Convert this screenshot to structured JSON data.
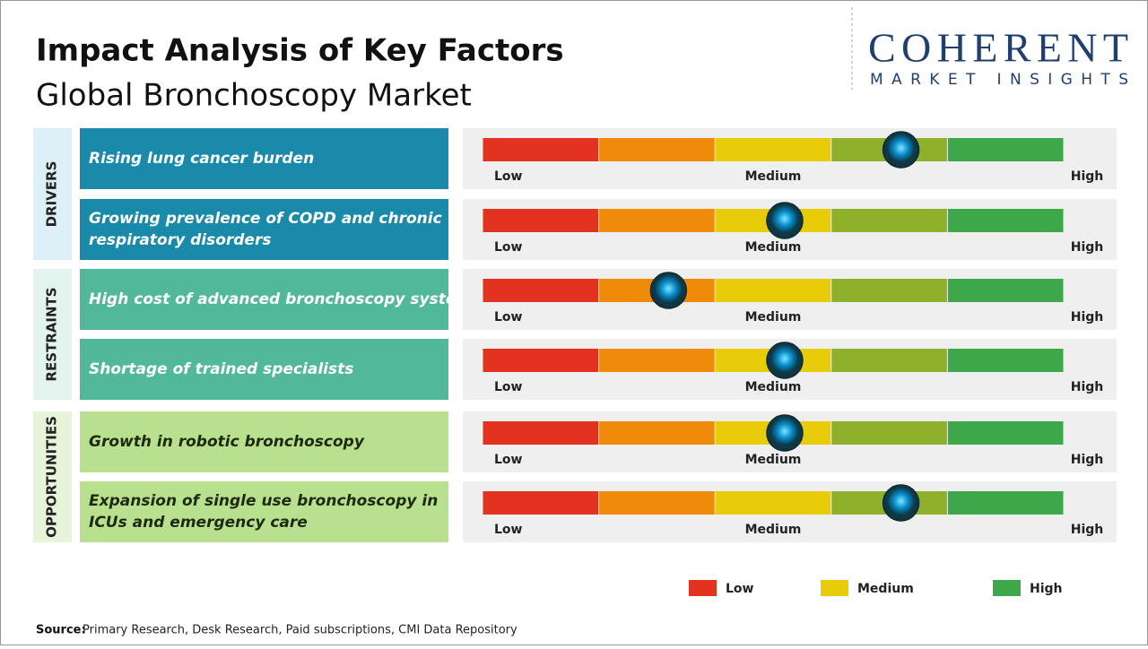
{
  "header": {
    "title": "Impact Analysis of Key Factors",
    "subtitle": "Global Bronchoscopy Market"
  },
  "logo": {
    "name": "COHERENT",
    "tagline": "MARKET INSIGHTS"
  },
  "scale_labels": [
    "Low",
    "Medium",
    "High"
  ],
  "segment_colors": [
    "#e3321f",
    "#ef8a0a",
    "#e8cc0a",
    "#8fb02a",
    "#3ca84a"
  ],
  "xlim": [
    0,
    5
  ],
  "groups": [
    {
      "name": "DRIVERS",
      "label_bg": "#ddeff7",
      "color": "#1a8aab",
      "text_color": "#ffffff",
      "factors": [
        {
          "label": "Rising lung cancer burden",
          "impact": 3.6
        },
        {
          "label": "Growing prevalence of COPD and chronic respiratory disorders",
          "impact": 2.6
        }
      ]
    },
    {
      "name": "RESTRAINTS",
      "label_bg": "#e3f4ee",
      "color": "#52b89a",
      "text_color": "#ffffff",
      "factors": [
        {
          "label": "High cost of advanced bronchoscopy systems",
          "impact": 1.6
        },
        {
          "label": "Shortage of trained specialists",
          "impact": 2.6
        }
      ]
    },
    {
      "name": "OPPORTUNITIES",
      "label_bg": "#e6f4da",
      "color": "#b8e08e",
      "text_color": "#1e2a10",
      "factors": [
        {
          "label": "Growth in robotic bronchoscopy",
          "impact": 2.6
        },
        {
          "label": "Expansion of single use bronchoscopy in ICUs and emergency care",
          "impact": 3.6
        }
      ]
    }
  ],
  "legend": [
    {
      "name": "Low",
      "color": "#e3321f"
    },
    {
      "name": "Medium",
      "color": "#e8cc0a"
    },
    {
      "name": "High",
      "color": "#3ca84a"
    }
  ],
  "source": {
    "label": "Source:",
    "text": "Primary Research, Desk Research, Paid subscriptions, CMI Data Repository"
  }
}
